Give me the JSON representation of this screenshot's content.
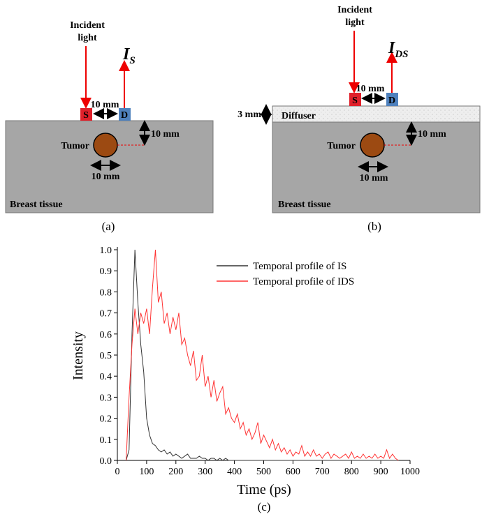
{
  "panel_a": {
    "incident_label": [
      "Incident",
      "light"
    ],
    "detected_label": {
      "main": "I",
      "sub": "S"
    },
    "source": "S",
    "detector": "D",
    "separation": "10 mm",
    "depth": "10 mm",
    "size": "10 mm",
    "tumor": "Tumor",
    "tissue": "Breast tissue",
    "caption": "(a)"
  },
  "panel_b": {
    "incident_label": [
      "Incident",
      "light"
    ],
    "detected_label": {
      "main": "I",
      "sub": "DS"
    },
    "source": "S",
    "detector": "D",
    "separation": "10 mm",
    "diffuser_thickness": "3 mm",
    "diffuser": "Diffuser",
    "depth": "10 mm",
    "size": "10 mm",
    "tumor": "Tumor",
    "tissue": "Breast tissue",
    "caption": "(b)"
  },
  "chart_data": {
    "type": "line",
    "xlabel": "Time (ps)",
    "ylabel": "Intensity",
    "caption": "(c)",
    "xlim": [
      0,
      1000
    ],
    "xticks": [
      0,
      100,
      200,
      300,
      400,
      500,
      600,
      700,
      800,
      900,
      1000
    ],
    "ylim": [
      0,
      1.0
    ],
    "yticks": [
      {
        "value": 0,
        "label": "0.0"
      },
      0.1,
      0.2,
      0.3,
      0.4,
      0.5,
      0.6,
      0.7,
      0.8,
      0.9,
      {
        "value": 1,
        "label": "1.0"
      }
    ],
    "legend": "upper right",
    "x": [
      30,
      40,
      50,
      60,
      70,
      80,
      90,
      100,
      110,
      120,
      130,
      140,
      150,
      160,
      170,
      180,
      190,
      200,
      210,
      220,
      230,
      240,
      250,
      260,
      270,
      280,
      290,
      300,
      310,
      320,
      330,
      340,
      350,
      360,
      370,
      380,
      390,
      400,
      410,
      420,
      430,
      440,
      450,
      460,
      470,
      480,
      490,
      500,
      510,
      520,
      530,
      540,
      550,
      560,
      570,
      580,
      590,
      600,
      610,
      620,
      630,
      640,
      650,
      660,
      670,
      680,
      690,
      700,
      710,
      720,
      730,
      740,
      750,
      760,
      770,
      780,
      790,
      800,
      810,
      820,
      830,
      840,
      850,
      860,
      870,
      880,
      890,
      900,
      910,
      920,
      930,
      940,
      950,
      960
    ],
    "series": [
      {
        "name": "Temporal profile of IS",
        "color": "#333333",
        "values": [
          0,
          0.05,
          0.6,
          1.0,
          0.75,
          0.55,
          0.42,
          0.2,
          0.12,
          0.08,
          0.07,
          0.05,
          0.04,
          0.05,
          0.03,
          0.04,
          0.02,
          0.03,
          0.02,
          0.01,
          0.02,
          0.03,
          0.01,
          0.01,
          0.01,
          0.02,
          0.01,
          0.01,
          0,
          0.01,
          0.01,
          0,
          0.01,
          0,
          0.01,
          0,
          0,
          0,
          0,
          0,
          0,
          0,
          0,
          0,
          0,
          0,
          0,
          0,
          0,
          0,
          0,
          0,
          0,
          0,
          0,
          0,
          0,
          0,
          0,
          0,
          0,
          0,
          0,
          0,
          0,
          0,
          0,
          0,
          0,
          0,
          0,
          0,
          0,
          0,
          0,
          0,
          0,
          0,
          0,
          0,
          0,
          0,
          0,
          0,
          0,
          0,
          0,
          0,
          0,
          0,
          0,
          0,
          0,
          0
        ]
      },
      {
        "name": "Temporal profile of IDS",
        "color": "#ff3333",
        "values": [
          0,
          0.3,
          0.55,
          0.72,
          0.6,
          0.7,
          0.65,
          0.72,
          0.6,
          0.82,
          1.0,
          0.75,
          0.8,
          0.65,
          0.7,
          0.6,
          0.68,
          0.62,
          0.7,
          0.55,
          0.58,
          0.5,
          0.45,
          0.52,
          0.38,
          0.4,
          0.5,
          0.35,
          0.4,
          0.3,
          0.38,
          0.28,
          0.32,
          0.35,
          0.22,
          0.25,
          0.2,
          0.18,
          0.22,
          0.15,
          0.18,
          0.12,
          0.15,
          0.1,
          0.13,
          0.18,
          0.08,
          0.12,
          0.09,
          0.06,
          0.1,
          0.05,
          0.08,
          0.04,
          0.06,
          0.03,
          0.05,
          0.02,
          0.04,
          0.03,
          0.07,
          0.02,
          0.04,
          0.02,
          0.05,
          0.02,
          0.03,
          0.01,
          0.03,
          0.04,
          0.01,
          0.03,
          0.02,
          0.01,
          0.02,
          0.03,
          0.01,
          0.04,
          0.01,
          0.02,
          0.01,
          0.03,
          0.01,
          0.02,
          0.01,
          0.03,
          0.01,
          0.02,
          0.01,
          0.05,
          0.01,
          0.03,
          0.01,
          0
        ]
      }
    ]
  }
}
